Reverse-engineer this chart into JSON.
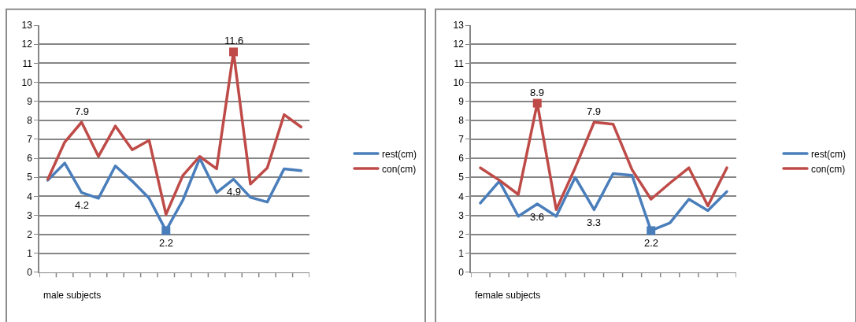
{
  "chart_data": [
    {
      "type": "line",
      "xlabel": "male subjects",
      "categories": [
        null,
        null,
        null,
        null,
        null,
        null,
        null,
        null,
        null,
        null,
        null,
        null,
        null,
        null,
        null,
        null
      ],
      "ylim": [
        0,
        13
      ],
      "yticks": [
        0,
        1,
        2,
        3,
        4,
        5,
        6,
        7,
        8,
        9,
        10,
        11,
        12,
        13
      ],
      "grid": "y",
      "legend": "right",
      "marker": "none",
      "series": [
        {
          "name": "rest(cm)",
          "color": "#4a7ebb",
          "values": [
            4.85,
            5.75,
            4.2,
            3.9,
            5.6,
            4.8,
            3.9,
            2.2,
            3.8,
            6.0,
            4.2,
            4.9,
            3.95,
            3.7,
            5.45,
            5.35
          ],
          "value_labels": [
            null,
            null,
            "4.2",
            null,
            null,
            null,
            null,
            "2.2",
            null,
            null,
            null,
            "4.9",
            null,
            null,
            null,
            null
          ]
        },
        {
          "name": "con(cm)",
          "color": "#be4b48",
          "values": [
            4.9,
            6.85,
            7.9,
            6.1,
            7.7,
            6.45,
            6.95,
            3.05,
            5.1,
            6.1,
            5.45,
            11.6,
            4.65,
            5.5,
            8.3,
            7.65
          ],
          "value_labels": [
            null,
            null,
            "7.9",
            null,
            null,
            null,
            null,
            null,
            null,
            null,
            null,
            "11.6",
            null,
            null,
            null,
            null
          ]
        },
        {
          "type": "scatter",
          "marker": "square",
          "color": "#4a7ebb",
          "values": [
            null,
            null,
            null,
            null,
            null,
            null,
            null,
            2.2,
            null,
            null,
            null,
            null,
            null,
            null,
            null,
            null
          ]
        },
        {
          "type": "scatter",
          "marker": "square",
          "color": "#be4b48",
          "values": [
            null,
            null,
            null,
            null,
            null,
            null,
            null,
            null,
            null,
            null,
            null,
            11.6,
            null,
            null,
            null,
            null
          ]
        }
      ]
    },
    {
      "type": "line",
      "xlabel": "female subjects",
      "categories": [
        null,
        null,
        null,
        null,
        null,
        null,
        null,
        null,
        null,
        null,
        null,
        null,
        null,
        null
      ],
      "ylim": [
        0,
        13
      ],
      "yticks": [
        0,
        1,
        2,
        3,
        4,
        5,
        6,
        7,
        8,
        9,
        10,
        11,
        12,
        13
      ],
      "grid": "y",
      "legend": "right",
      "marker": "none",
      "series": [
        {
          "name": "rest(cm)",
          "color": "#4a7ebb",
          "values": [
            3.65,
            4.8,
            2.95,
            3.6,
            2.95,
            5.0,
            3.3,
            5.2,
            5.1,
            2.2,
            2.6,
            3.85,
            3.25,
            4.25
          ],
          "value_labels": [
            null,
            null,
            null,
            "3.6",
            null,
            null,
            "3.3",
            null,
            null,
            "2.2",
            null,
            null,
            null,
            null
          ]
        },
        {
          "name": "con(cm)",
          "color": "#be4b48",
          "values": [
            5.5,
            4.85,
            4.1,
            8.9,
            3.3,
            5.5,
            7.9,
            7.8,
            5.4,
            3.85,
            4.7,
            5.5,
            3.5,
            5.5
          ],
          "value_labels": [
            null,
            null,
            null,
            "8.9",
            null,
            null,
            "7.9",
            null,
            null,
            null,
            null,
            null,
            null,
            null
          ]
        },
        {
          "type": "scatter",
          "marker": "square",
          "color": "#4a7ebb",
          "values": [
            null,
            null,
            null,
            null,
            null,
            null,
            null,
            null,
            null,
            2.2,
            null,
            null,
            null,
            null
          ]
        },
        {
          "type": "scatter",
          "marker": "square",
          "color": "#be4b48",
          "values": [
            null,
            null,
            null,
            8.9,
            null,
            null,
            null,
            null,
            null,
            null,
            null,
            null,
            null,
            null
          ]
        }
      ]
    }
  ]
}
